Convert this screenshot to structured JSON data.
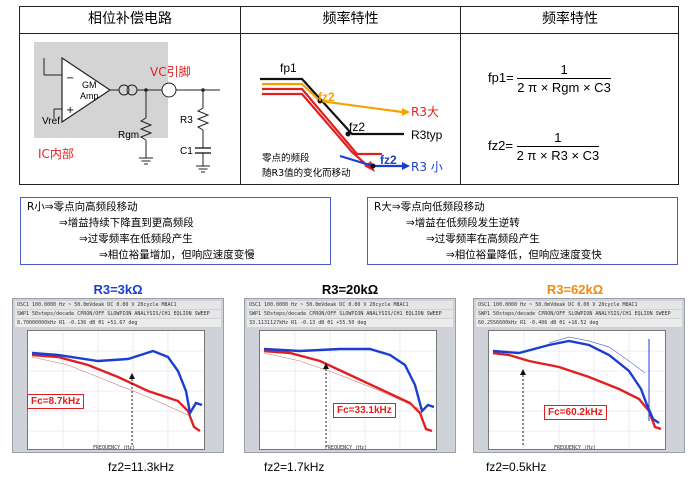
{
  "headers": {
    "phase_comp": "相位补偿电路",
    "freq_char_1": "频率特性",
    "freq_char_2": "频率特性"
  },
  "circuit": {
    "gm_amp": "GM\nAmp",
    "gm": "GM",
    "amp": "Amp",
    "vref": "Vref",
    "rgm": "Rgm",
    "vc_pin": "VC引脚",
    "r3": "R3",
    "c1": "C1",
    "ic_internal": "IC内部",
    "plus": "+",
    "minus": "−"
  },
  "bode_sketch": {
    "fp1": "fp1",
    "fz2_top": "fz2",
    "fz2_mid": "fz2",
    "fz2_bottom": "fz2",
    "r3_big": "R3大",
    "r3_typ": "R3typ",
    "r3_small": "R3 小",
    "zero_note_1": "零点的频段",
    "zero_note_2": "随R3值的变化而移动"
  },
  "formulas": {
    "fp1_lhs": "fp1=",
    "fp1_num": "1",
    "fp1_den": "2 π × Rgm × C3",
    "fz2_lhs": "fz2=",
    "fz2_num": "1",
    "fz2_den": "2 π × R3 × C3"
  },
  "notes": {
    "left": [
      "R小⇒零点向高频段移动",
      "⇒增益持续下降直到更高频段",
      "⇒过零频率在低频段产生",
      "⇒相位裕量增加，但响应速度变慢"
    ],
    "right": [
      "R大⇒零点向低频段移动",
      "⇒增益在低频段发生逆转",
      "⇒过零频率在高频段产生",
      "⇒相位裕量降低，但响应速度变快"
    ]
  },
  "measurements": [
    {
      "title": "R3=3kΩ",
      "title_color": "#1a3fd0",
      "fc": "Fc=8.7kHz",
      "fz2": "fz2=11.3kHz",
      "readout": "8.70000000kHz  R1  -0.136 dB  θ1  +51.67  deg"
    },
    {
      "title": "R3=20kΩ",
      "title_color": "#000000",
      "fc": "Fc=33.1kHz",
      "fz2": "fz2=1.7kHz",
      "readout": "33.1131127kHz  R1  -0.13 dB  θ1  +55.50  deg"
    },
    {
      "title": "R3=62kΩ",
      "title_color": "#f08a10",
      "fc": "Fc=60.2kHz",
      "fz2": "fz2=0.5kHz",
      "readout": "60.2556600kHz  R1  -0.406 dB  θ1  +16.52  deg"
    }
  ],
  "analyzer": {
    "line1": "OSC1   100.0000 Hz  ~ 50.0mVdeak  DC  0.00 V    20cycle   M8AC1",
    "line2": "SWP1   50steps/decade  CPRON/OFF  SLOWPION  ANALYSIS/CH1  EQLION  SWEEP",
    "x_axis": "FREQUENCY (Hz)"
  },
  "colors": {
    "blue": "#1a3fd0",
    "red": "#e02020",
    "orange": "#f5a200",
    "note_border": "#4a5bd0"
  }
}
